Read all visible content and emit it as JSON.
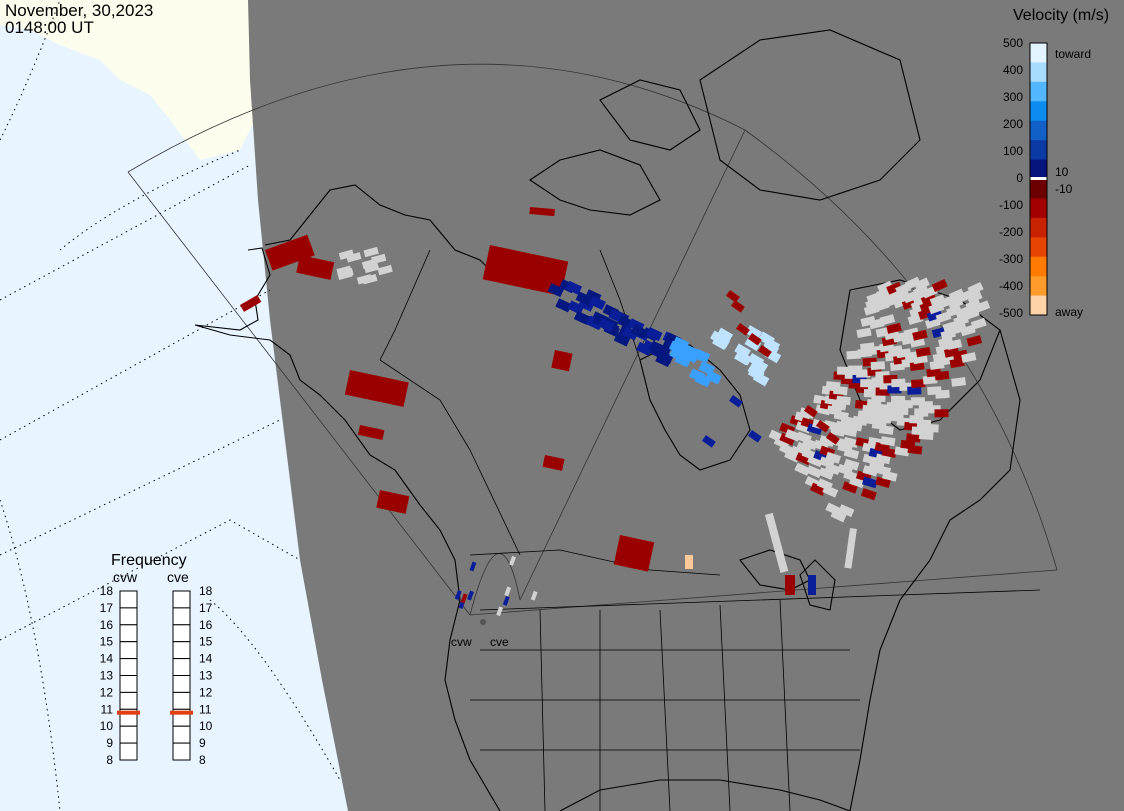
{
  "header": {
    "date": "November, 30,2023",
    "time": "0148:00 UT"
  },
  "colors": {
    "land": "#7a7a7a",
    "ocean_light": "#e8f4ff",
    "ice": "#fdfdee",
    "gray_scatter": "#d2d2d2"
  },
  "velocity_scale": {
    "title": "Velocity (m/s)",
    "ticks": [
      "500",
      "400",
      "300",
      "200",
      "100",
      "0",
      "-100",
      "-200",
      "-300",
      "-400",
      "-500"
    ],
    "label_toward": "toward",
    "label_away": "away",
    "label_pos": "10",
    "label_neg": "-10",
    "colors": [
      "#e2f4ff",
      "#a7dcff",
      "#53b7ff",
      "#0d8cf0",
      "#1060c8",
      "#0b3aa5",
      "#06157c",
      "#6c0000",
      "#a30000",
      "#c92200",
      "#e64400",
      "#ff7a00",
      "#ff9b2a",
      "#ffd3a8"
    ]
  },
  "stations": [
    {
      "code": "cvw",
      "label": "cvw"
    },
    {
      "code": "cve",
      "label": "cve"
    }
  ],
  "frequency": {
    "title": "Frequency",
    "columns": [
      "cvw",
      "cve"
    ],
    "ticks": [
      "18",
      "17",
      "16",
      "15",
      "14",
      "13",
      "12",
      "11",
      "10",
      "9",
      "8"
    ],
    "marker_color": "#e04010",
    "values_mhz": [
      10.8,
      10.8
    ]
  }
}
